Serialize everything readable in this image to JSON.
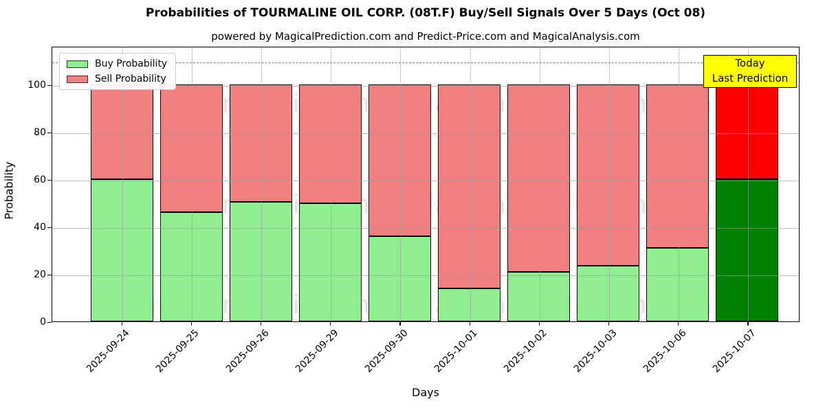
{
  "title": "Probabilities of TOURMALINE OIL CORP. (08T.F) Buy/Sell Signals Over 5 Days (Oct 08)",
  "subtitle": "powered by MagicalPrediction.com and Predict-Price.com and MagicalAnalysis.com",
  "axes": {
    "xlabel": "Days",
    "ylabel": "Probability"
  },
  "legend": [
    {
      "label": "Buy Probability",
      "color": "#90ee90"
    },
    {
      "label": "Sell Probability",
      "color": "#f08080"
    }
  ],
  "annotation": {
    "lines": [
      "Today",
      "Last Prediction"
    ],
    "bg_color": "#ffff00"
  },
  "watermarks": {
    "left": "MagicalAnalysis.com",
    "right": "MagicalPrediction.com"
  },
  "chart_data": {
    "type": "bar",
    "stacked": true,
    "title": "Probabilities of TOURMALINE OIL CORP. (08T.F) Buy/Sell Signals Over 5 Days (Oct 08)",
    "xlabel": "Days",
    "ylabel": "Probability",
    "categories": [
      "2025-09-24",
      "2025-09-25",
      "2025-09-26",
      "2025-09-29",
      "2025-09-30",
      "2025-10-01",
      "2025-10-02",
      "2025-10-03",
      "2025-10-06",
      "2025-10-07"
    ],
    "series": [
      {
        "name": "Buy Probability",
        "color": "#90ee90",
        "last_bar_color": "#008000",
        "values": [
          60,
          46,
          50.5,
          50,
          36,
          14,
          21,
          23.5,
          31,
          60
        ]
      },
      {
        "name": "Sell Probability",
        "color": "#f08080",
        "last_bar_color": "#ff0000",
        "values": [
          40,
          54,
          49.5,
          50,
          64,
          86,
          79,
          76.5,
          69,
          40
        ]
      }
    ],
    "yticks": [
      0,
      20,
      40,
      60,
      80,
      100
    ],
    "ylim": [
      0,
      116.3
    ],
    "threshold_dashed_line": 110,
    "grid": true,
    "legend_position": "upper-left"
  },
  "colors": {
    "buy": "#90ee90",
    "sell": "#f08080",
    "buy_today": "#008000",
    "sell_today": "#ff0000",
    "annotation_bg": "#ffff00",
    "threshold": "#7f7f7f"
  }
}
